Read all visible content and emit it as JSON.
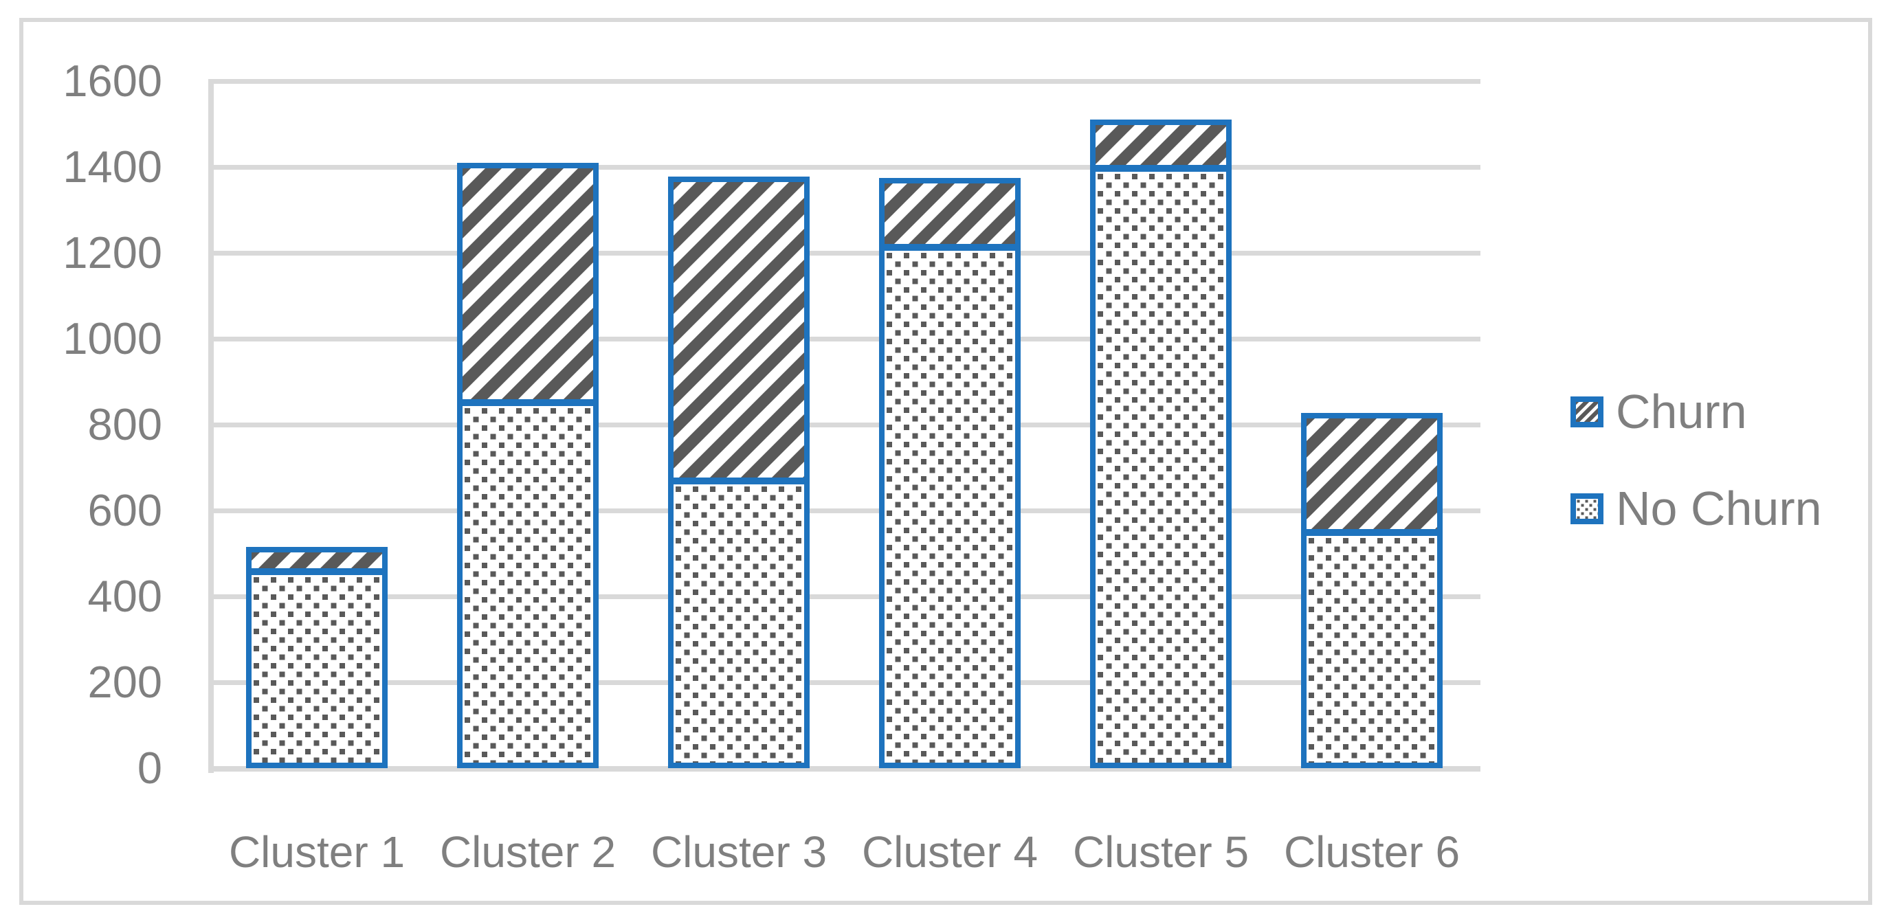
{
  "figure": {
    "background": "#FFFFFF",
    "frame_color": "#D9D9D9"
  },
  "colors": {
    "series_border_blue": "#1E73BE",
    "pattern_gray": "#595959",
    "gridline_gray": "#D9D9D9",
    "label_gray": "#7F7F7F"
  },
  "legend": {
    "churn_label": "Churn",
    "no_churn_label": "No Churn"
  },
  "chart_data": {
    "type": "bar",
    "stacked": true,
    "title": "",
    "xlabel": "",
    "ylabel": "",
    "categories": [
      "Cluster 1",
      "Cluster 2",
      "Cluster 3",
      "Cluster 4",
      "Cluster 5",
      "Cluster 6"
    ],
    "series": [
      {
        "name": "Churn",
        "pattern": "diagonal-stripes",
        "border_color": "#1E73BE",
        "pattern_color": "#595959",
        "values": [
          57,
          559,
          708,
          161,
          113,
          279
        ]
      },
      {
        "name": "No Churn",
        "pattern": "dots",
        "border_color": "#1E73BE",
        "pattern_color": "#595959",
        "values": [
          458,
          851,
          669,
          1213,
          1398,
          548
        ]
      }
    ],
    "stack_order_bottom_to_top": [
      "No Churn",
      "Churn"
    ],
    "stack_totals": [
      515,
      1410,
      1377,
      1374,
      1511,
      827
    ],
    "ylim": [
      0,
      1600
    ],
    "yticks": [
      0,
      200,
      400,
      600,
      800,
      1000,
      1200,
      1400,
      1600
    ],
    "grid": true,
    "legend_position": "right"
  }
}
